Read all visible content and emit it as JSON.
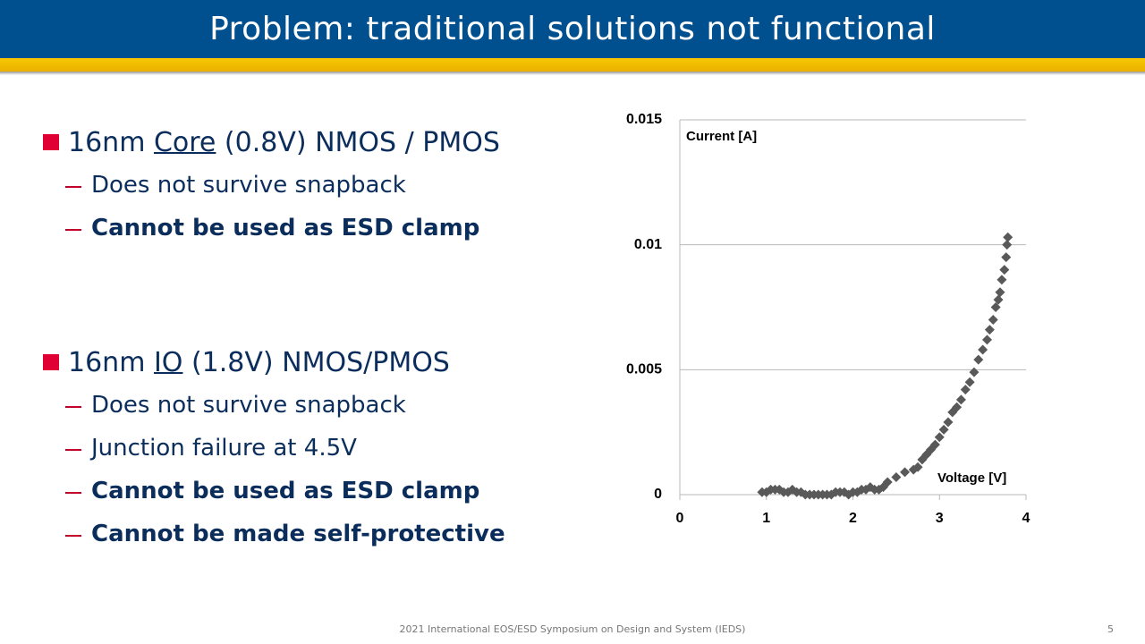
{
  "header": {
    "title": "Problem: traditional solutions not functional"
  },
  "bullets": [
    {
      "before": "16nm ",
      "underlined": "Core",
      "after": " (0.8V) NMOS / PMOS",
      "sub_items": [
        {
          "text": "Does not survive snapback",
          "bold": false
        },
        {
          "text": "Cannot be used as ESD clamp",
          "bold": true
        }
      ]
    },
    {
      "before": "16nm ",
      "underlined": "IO",
      "after": " (1.8V) NMOS/PMOS",
      "sub_items": [
        {
          "text": "Does not survive snapback",
          "bold": false
        },
        {
          "text": "Junction failure at 4.5V",
          "bold": false
        },
        {
          "text": "Cannot be used as ESD clamp",
          "bold": true
        },
        {
          "text": "Cannot be made self-protective",
          "bold": true
        }
      ]
    }
  ],
  "chart_data": {
    "type": "scatter",
    "xlabel": "Voltage [V]",
    "ylabel": "Current [A]",
    "x": [
      0.95,
      1.0,
      1.05,
      1.1,
      1.15,
      1.2,
      1.25,
      1.3,
      1.35,
      1.4,
      1.45,
      1.5,
      1.55,
      1.6,
      1.65,
      1.7,
      1.75,
      1.8,
      1.85,
      1.9,
      1.95,
      2.0,
      2.05,
      2.1,
      2.15,
      2.2,
      2.25,
      2.3,
      2.35,
      2.4,
      2.5,
      2.6,
      2.7,
      2.75,
      2.8,
      2.85,
      2.9,
      2.95,
      3.0,
      3.05,
      3.1,
      3.15,
      3.2,
      3.25,
      3.3,
      3.35,
      3.4,
      3.45,
      3.5,
      3.55,
      3.58,
      3.62,
      3.65,
      3.68,
      3.7,
      3.72,
      3.75,
      3.77,
      3.78,
      3.79
    ],
    "values": [
      0.0001,
      0.0001,
      0.0002,
      0.0002,
      0.0002,
      0.0001,
      0.0001,
      0.0002,
      0.0001,
      0.0001,
      0,
      0,
      0,
      0,
      0,
      0,
      0,
      0.0001,
      0.0001,
      0.0001,
      0,
      0.0001,
      0.0001,
      0.0002,
      0.0002,
      0.0003,
      0.0002,
      0.0002,
      0.0003,
      0.0005,
      0.0007,
      0.0009,
      0.001,
      0.0011,
      0.0014,
      0.0016,
      0.0018,
      0.002,
      0.0023,
      0.0026,
      0.0029,
      0.0033,
      0.0035,
      0.0038,
      0.0042,
      0.0045,
      0.0049,
      0.0054,
      0.0058,
      0.0062,
      0.0066,
      0.007,
      0.0075,
      0.0078,
      0.0081,
      0.0086,
      0.009,
      0.0095,
      0.01,
      0.0103
    ],
    "color": "#595959",
    "xlim": [
      0,
      4
    ],
    "xticks": [
      0,
      1,
      2,
      3,
      4
    ],
    "ylim": [
      0,
      0.015
    ],
    "yticks": [
      0,
      0.005,
      0.01,
      0.015
    ],
    "grid": true
  },
  "footer": {
    "text": "2021 International EOS/ESD Symposium on Design and System (IEDS)",
    "page_number": 5
  }
}
